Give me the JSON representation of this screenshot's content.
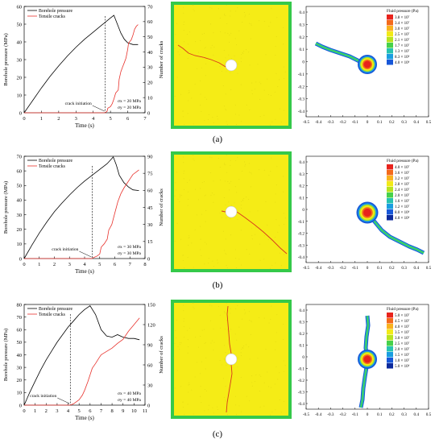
{
  "captions": [
    "(a)",
    "(b)",
    "(c)"
  ],
  "chart_data": [
    {
      "type": "line",
      "panel": "a",
      "xlabel": "Time (s)",
      "ylabel": "Borehole pressure (MPa)",
      "y2label": "Number of cracks",
      "xlim": [
        0,
        7
      ],
      "xticks": [
        0,
        1,
        2,
        3,
        4,
        5,
        6,
        7
      ],
      "ylim": [
        0,
        60
      ],
      "yticks": [
        0,
        10,
        20,
        30,
        40,
        50,
        60
      ],
      "y2lim": [
        0,
        70
      ],
      "y2ticks": [
        0,
        10,
        20,
        30,
        40,
        50,
        60,
        70
      ],
      "legend": [
        "Borehole pressure",
        "Tensile cracks"
      ],
      "annotation": "crack initiation",
      "stress_lines": [
        "σx = 20 MPa",
        "σy = 20 MPa"
      ],
      "crack_initiation_time": 4.7,
      "pressure": {
        "x": [
          0,
          0.5,
          1,
          1.5,
          2,
          2.5,
          3,
          3.5,
          4,
          4.5,
          5,
          5.2,
          5.4,
          5.6,
          5.8,
          6,
          6.3,
          6.6
        ],
        "y": [
          0,
          7,
          14,
          20.5,
          26.5,
          32,
          37,
          41.5,
          45.5,
          49.5,
          53.5,
          55,
          50,
          45,
          41.5,
          39.5,
          38.5,
          38.5
        ]
      },
      "cracks": {
        "x": [
          0,
          4.6,
          4.7,
          4.8,
          4.85,
          5.0,
          5.1,
          5.2,
          5.3,
          5.45,
          5.5,
          5.6,
          5.7,
          5.8,
          5.9,
          6.0,
          6.05,
          6.2,
          6.3,
          6.4,
          6.5,
          6.6
        ],
        "y": [
          0,
          0,
          0,
          1,
          3,
          4,
          6,
          9,
          13,
          15,
          22,
          27,
          30,
          33,
          36,
          42,
          46,
          48,
          51,
          55,
          57,
          58
        ]
      }
    },
    {
      "type": "line",
      "panel": "b",
      "xlabel": "Time (s)",
      "ylabel": "Borehole pressure (MPa)",
      "y2label": "Number of cracks",
      "xlim": [
        0,
        8
      ],
      "xticks": [
        0,
        1,
        2,
        3,
        4,
        5,
        6,
        7,
        8
      ],
      "ylim": [
        0,
        70
      ],
      "yticks": [
        0,
        10,
        20,
        30,
        40,
        50,
        60,
        70
      ],
      "y2lim": [
        0,
        90
      ],
      "y2ticks": [
        0,
        15,
        30,
        45,
        60,
        75,
        90
      ],
      "legend": [
        "Borehole pressure",
        "Tensile cracks"
      ],
      "annotation": "crack initiation",
      "stress_lines": [
        "σx = 30 MPa",
        "σy = 30 MPa"
      ],
      "crack_initiation_time": 4.5,
      "pressure": {
        "x": [
          0,
          0.5,
          1,
          1.5,
          2,
          2.5,
          3,
          3.5,
          4,
          4.5,
          5,
          5.5,
          5.9,
          6.1,
          6.3,
          6.6,
          6.9,
          7.2,
          7.6
        ],
        "y": [
          0,
          9,
          17.5,
          25,
          32,
          38,
          43.5,
          48.5,
          53,
          57,
          61,
          65,
          69.5,
          64,
          57,
          52,
          49,
          47,
          46.5
        ]
      },
      "cracks": {
        "x": [
          0,
          4.4,
          4.5,
          4.6,
          4.8,
          5.0,
          5.1,
          5.3,
          5.5,
          5.6,
          5.8,
          6.0,
          6.1,
          6.2,
          6.4,
          6.6,
          6.8,
          7.0,
          7.2,
          7.4,
          7.6
        ],
        "y": [
          0,
          0,
          0,
          1,
          2,
          4,
          10,
          13,
          17,
          25,
          30,
          40,
          45,
          50,
          57,
          62,
          66,
          70,
          74,
          76,
          78
        ]
      }
    },
    {
      "type": "line",
      "panel": "c",
      "xlabel": "Time (s)",
      "ylabel": "Borehole pressure (MPa)",
      "y2label": "Number of cracks",
      "xlim": [
        0,
        11
      ],
      "xticks": [
        0,
        1,
        2,
        3,
        4,
        5,
        6,
        7,
        8,
        9,
        10,
        11
      ],
      "ylim": [
        0,
        80
      ],
      "yticks": [
        0,
        10,
        20,
        30,
        40,
        50,
        60,
        70,
        80
      ],
      "y2lim": [
        0,
        150
      ],
      "y2ticks": [
        0,
        30,
        60,
        90,
        120,
        150
      ],
      "legend": [
        "Borehole pressure",
        "Tensile cracks"
      ],
      "annotation": "crack initiation",
      "stress_lines": [
        "σx = 40 MPa",
        "σy = 40 MPa"
      ],
      "crack_initiation_time": 4.2,
      "pressure": {
        "x": [
          0,
          0.5,
          1,
          1.5,
          2,
          2.5,
          3,
          3.5,
          4,
          4.5,
          5,
          5.5,
          6,
          6.5,
          7,
          7.5,
          8,
          8.5,
          9,
          9.5,
          10,
          10.5
        ],
        "y": [
          0,
          10,
          19,
          28,
          36,
          43,
          50,
          56,
          62,
          67,
          72,
          76,
          79,
          72,
          60,
          55,
          54,
          56,
          54,
          53,
          53,
          52
        ]
      },
      "cracks": {
        "x": [
          0,
          4.0,
          4.2,
          4.5,
          5.0,
          5.3,
          5.5,
          5.8,
          6.0,
          6.2,
          6.5,
          6.8,
          7.0,
          7.5,
          8.0,
          8.5,
          9.0,
          9.5,
          10.0,
          10.5
        ],
        "y": [
          0,
          0,
          0,
          2,
          8,
          15,
          22,
          35,
          45,
          55,
          62,
          70,
          75,
          80,
          85,
          92,
          98,
          110,
          120,
          130
        ]
      }
    }
  ],
  "fluid_maps": [
    {
      "panel": "a",
      "legend_title": "Fluid pressure (Pa)",
      "legend_values": [
        "3.8 × 10⁷",
        "3.4 × 10⁷",
        "3.0 × 10⁷",
        "2.5 × 10⁷",
        "2.1 × 10⁷",
        "1.7 × 10⁷",
        "1.3 × 10⁷",
        "8.3 × 10⁶",
        "4.0 × 10⁶"
      ],
      "xticks": [
        "-0.5",
        "-0.4",
        "-0.3",
        "-0.2",
        "-0.1",
        "0",
        "0.1",
        "0.2",
        "0.3",
        "0.4",
        "0.5"
      ],
      "yticks": [
        "0.4",
        "0.3",
        "0.2",
        "0.1",
        "0",
        "-0.1",
        "-0.2",
        "-0.3",
        "-0.4"
      ]
    },
    {
      "panel": "b",
      "legend_title": "Fluid pressure (Pa)",
      "legend_values": [
        "4.0 × 10⁷",
        "3.6 × 10⁷",
        "3.2 × 10⁷",
        "2.8 × 10⁷",
        "2.4 × 10⁷",
        "2.0 × 10⁷",
        "1.6 × 10⁷",
        "1.2 × 10⁷",
        "8.0 × 10⁶",
        "4.0 × 10⁶"
      ],
      "xticks": [
        "-0.5",
        "-0.4",
        "-0.3",
        "-0.2",
        "-0.1",
        "0",
        "0.1",
        "0.2",
        "0.3",
        "0.4",
        "0.5"
      ],
      "yticks": [
        "0.4",
        "0.3",
        "0.2",
        "0.1",
        "0",
        "-0.1",
        "-0.2",
        "-0.3",
        "-0.4"
      ]
    },
    {
      "panel": "c",
      "legend_title": "Fluid pressure (Pa)",
      "legend_values": [
        "5.0 × 10⁷",
        "4.5 × 10⁷",
        "4.0 × 10⁷",
        "3.5 × 10⁷",
        "3.0 × 10⁷",
        "2.5 × 10⁷",
        "2.0 × 10⁷",
        "1.5 × 10⁷",
        "1.0 × 10⁷",
        "5.0 × 10⁶"
      ],
      "xticks": [
        "-0.5",
        "-0.4",
        "-0.3",
        "-0.2",
        "-0.1",
        "0",
        "0.1",
        "0.2",
        "0.3",
        "0.4",
        "0.5"
      ],
      "yticks": [
        "0.4",
        "0.3",
        "0.2",
        "0.1",
        "0",
        "-0.1",
        "-0.2",
        "-0.3",
        "-0.4"
      ]
    }
  ],
  "colors": {
    "pressure_line": "#000000",
    "crack_line": "#e8322c",
    "specimen_fill": "#f5ec16",
    "specimen_border": "#35c94a",
    "fracture": "#d9381e",
    "fluid_scale": [
      "#e8231c",
      "#f46a1b",
      "#f9b21d",
      "#f2ea17",
      "#b8e31f",
      "#46d14a",
      "#27c3b0",
      "#1a9ee0",
      "#1757d8",
      "#0c2a9c"
    ]
  }
}
